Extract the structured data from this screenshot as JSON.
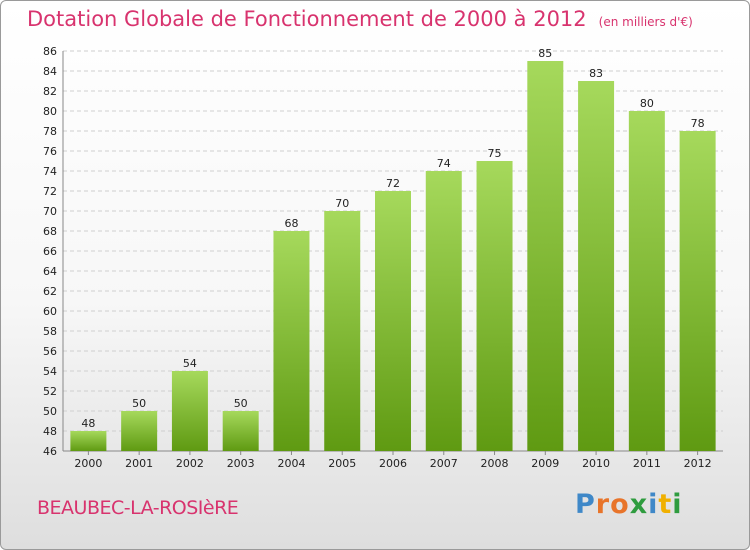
{
  "chart_data": {
    "type": "bar",
    "title": "Dotation Globale de Fonctionnement de 2000 à 2012",
    "subtitle": "(en milliers d'€)",
    "categories": [
      "2000",
      "2001",
      "2002",
      "2003",
      "2004",
      "2005",
      "2006",
      "2007",
      "2008",
      "2009",
      "2010",
      "2011",
      "2012"
    ],
    "values": [
      48,
      50,
      54,
      50,
      68,
      70,
      72,
      74,
      75,
      85,
      83,
      80,
      78
    ],
    "xlabel": "",
    "ylabel": "",
    "ylim": [
      46,
      86
    ],
    "yticks": [
      46,
      48,
      50,
      52,
      54,
      56,
      58,
      60,
      62,
      64,
      66,
      68,
      70,
      72,
      74,
      76,
      78,
      80,
      82,
      84,
      86
    ],
    "grid": true,
    "legend": "none",
    "bar_color_top": "#a6d95c",
    "bar_color_bottom": "#5f9a12"
  },
  "footer": {
    "commune": "BEAUBEC-LA-ROSIèRE",
    "logo_text": "Proxiti",
    "logo_colors": [
      "#3f88c8",
      "#e8742a",
      "#e8742a",
      "#2f9c3f",
      "#3f88c8",
      "#f0b000",
      "#2f9c3f"
    ]
  }
}
